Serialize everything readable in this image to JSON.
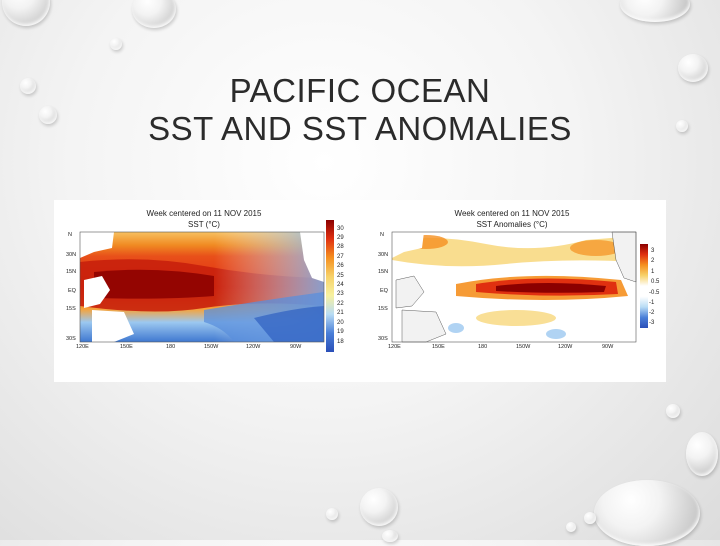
{
  "slide": {
    "title_line1": "PACIFIC OCEAN",
    "title_line2": "SST AND SST ANOMALIES"
  },
  "left_map": {
    "header": "Week centered on 11 NOV 2015",
    "subtitle": "SST (°C)",
    "colorbar": [
      "30",
      "29",
      "28",
      "27",
      "26",
      "25",
      "24",
      "23",
      "22",
      "21",
      "20",
      "19",
      "18"
    ],
    "lat_labels": [
      "N",
      "30N",
      "15N",
      "EQ",
      "15S",
      "30S"
    ],
    "lon_labels": [
      "120E",
      "150E",
      "180",
      "150W",
      "120W",
      "90W"
    ]
  },
  "right_map": {
    "header": "Week centered on 11 NOV 2015",
    "subtitle": "SST Anomalies (°C)",
    "colorbar": [
      "3",
      "2",
      "1",
      "0.5",
      "-0.5",
      "-1",
      "-2",
      "-3"
    ],
    "lat_labels": [
      "N",
      "30N",
      "15N",
      "EQ",
      "15S",
      "30S"
    ],
    "lon_labels": [
      "120E",
      "150E",
      "180",
      "150W",
      "120W",
      "90W"
    ]
  },
  "colors": {
    "warm_dark": "#8b0000",
    "warm": "#e03010",
    "orange": "#f59020",
    "yellow": "#f7d26a",
    "cool": "#4a7fd8"
  }
}
